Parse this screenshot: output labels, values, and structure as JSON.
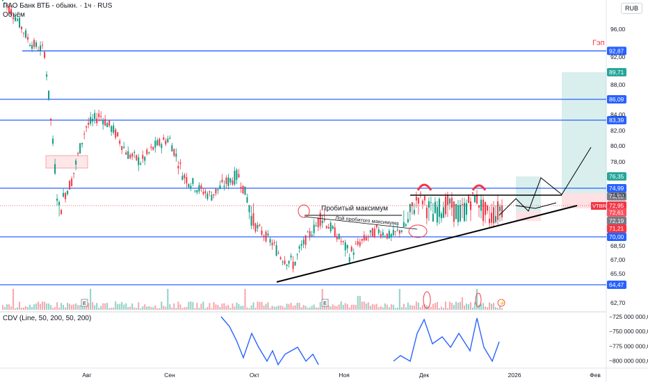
{
  "header": {
    "title": "ПАО Банк ВТБ - обыкн. · 1ч · RUS",
    "volume_label": "Объём",
    "cdv_label": "CDV (Line, 50, 200, 50, 200)"
  },
  "currency": "RUB",
  "ticker_label": "VTBR",
  "colors": {
    "level_line": "#2962ff",
    "up_candle": "#089981",
    "down_candle": "#f23645",
    "cdv_line": "#2962ff",
    "target_zone": "#26a69a",
    "stop_zone": "#f23645",
    "annotation_red": "#f23645"
  },
  "chart_data": [
    {
      "type": "line",
      "title": "ПАО Банк ВТБ - обыкн. · 1ч · RUS",
      "ylabel": "RUB",
      "y_ticks": [
        "96,00",
        "92,00",
        "88,00",
        "84,00",
        "82,00",
        "80,00",
        "78,00",
        "74,00",
        "68,50",
        "67,00",
        "65,50",
        "62,70"
      ],
      "x_ticks": [
        "Авг",
        "Сен",
        "Окт",
        "Ноя",
        "Дек",
        "2026",
        "Фев"
      ],
      "price_path": [
        [
          "Июл",
          100.0
        ],
        [
          "Июл",
          97.5
        ],
        [
          "Июл",
          94.0
        ],
        [
          "Июл",
          92.9
        ],
        [
          "Июл",
          72.5
        ],
        [
          "Июл",
          76.0
        ],
        [
          "Июл",
          82.5
        ],
        [
          "Июл",
          84.0
        ],
        [
          "Авг",
          82.0
        ],
        [
          "Авг",
          79.0
        ],
        [
          "Авг",
          78.0
        ],
        [
          "Авг",
          80.0
        ],
        [
          "Авг",
          81.0
        ],
        [
          "Сен",
          76.5
        ],
        [
          "Сен",
          75.0
        ],
        [
          "Сен",
          74.0
        ],
        [
          "Сен",
          75.5
        ],
        [
          "Сен",
          76.5
        ],
        [
          "Окт",
          72.0
        ],
        [
          "Окт",
          70.0
        ],
        [
          "Окт",
          67.5
        ],
        [
          "Окт",
          66.5
        ],
        [
          "Окт",
          70.0
        ],
        [
          "Окт",
          72.6
        ],
        [
          "Окт",
          70.5
        ],
        [
          "Ноя",
          67.5
        ],
        [
          "Ноя",
          69.5
        ],
        [
          "Ноя",
          71.0
        ],
        [
          "Ноя",
          70.0
        ],
        [
          "Ноя",
          71.5
        ],
        [
          "Дек",
          73.9
        ],
        [
          "Дек",
          72.5
        ],
        [
          "Дек",
          73.3
        ],
        [
          "Дек",
          72.4
        ],
        [
          "Дек",
          73.9
        ],
        [
          "Дек",
          72.2
        ],
        [
          "Дек",
          72.95
        ]
      ],
      "levels": [
        {
          "value": 92.87,
          "label": "92,87"
        },
        {
          "value": 86.09,
          "label": "86,09"
        },
        {
          "value": 83.39,
          "label": "83,39"
        },
        {
          "value": 74.99,
          "label": "74,99"
        },
        {
          "value": 70.0,
          "label": "70,00"
        },
        {
          "value": 64.47,
          "label": "64,47"
        }
      ],
      "price_labels": [
        {
          "value": 89.71,
          "label": "89,71",
          "color": "#26a69a"
        },
        {
          "value": 76.35,
          "label": "76,35",
          "color": "#26a69a"
        },
        {
          "value": 73.88,
          "label": "73,88",
          "color": "#787b86"
        },
        {
          "value": 72.95,
          "label": "72,95",
          "color": "#f23645"
        },
        {
          "value": 72.61,
          "label": "72,61",
          "color": "#f7525f"
        },
        {
          "value": 72.19,
          "label": "72,19",
          "color": "#787b86"
        },
        {
          "value": 71.21,
          "label": "71,21",
          "color": "#f23645"
        }
      ],
      "annotations": {
        "gap": "Гэп",
        "broken_max": "Пробитый максимум",
        "broken_max_line": "Лой пробитого максимума"
      },
      "ylim": [
        62.0,
        100.0
      ]
    },
    {
      "type": "line",
      "title": "CDV (Line, 50, 200, 50, 200)",
      "y_ticks": [
        "−725 000 000,00",
        "−750 000 000,00",
        "−775 000 000,00",
        "−800 000 000,00"
      ],
      "ylim": [
        -810000000,
        -718000000
      ]
    }
  ]
}
